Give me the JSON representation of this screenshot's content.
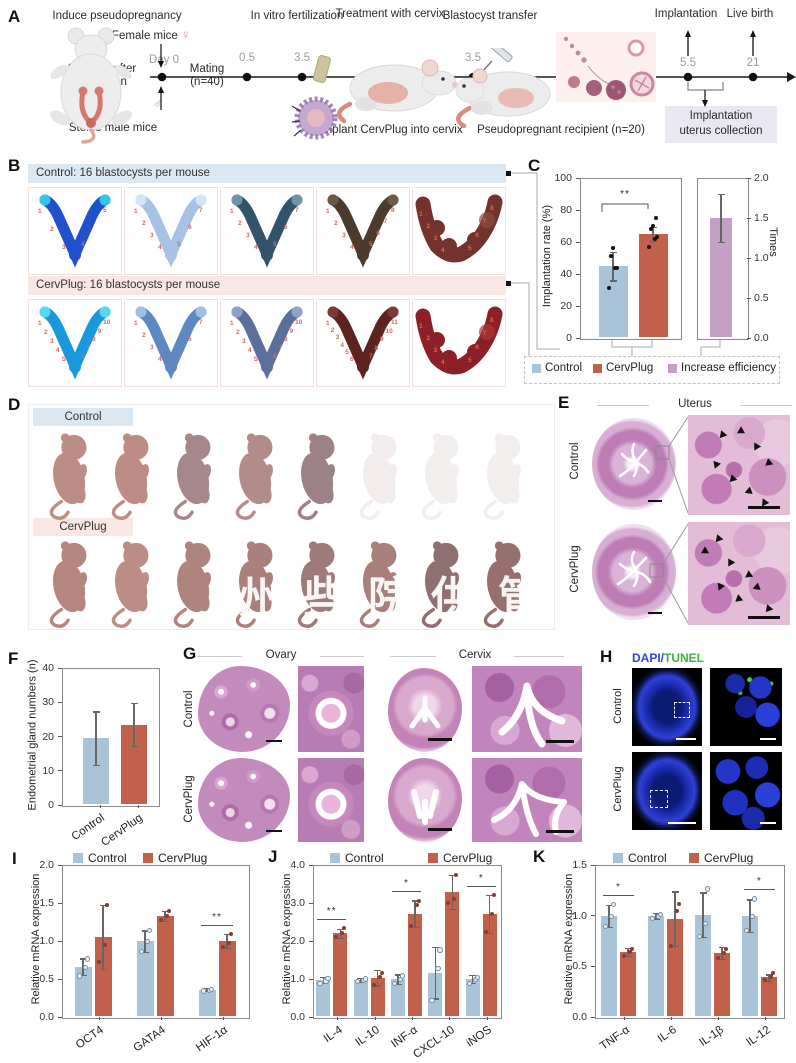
{
  "watermark": {
    "chars": [
      "州",
      "些",
      "院",
      "供",
      "管"
    ]
  },
  "colors": {
    "control": "#a9c4d8",
    "cervplug": "#c2614b",
    "increase_efficiency": "#c59fc5",
    "control_header_bg": "#dbe7f1",
    "cervplug_header_bg": "#f9e7e4",
    "dapi_blue": "#3442d8",
    "tunel_green": "#3cb53c",
    "collection_box_bg": "#e9e7f2",
    "specimen_number": "#d9655a"
  },
  "panelA": {
    "label": "A",
    "stage_induce": "Induce pseudopregnancy",
    "stage_ivf": "In vitro fertilization",
    "stage_treatment": "Treatment with cervix",
    "stage_transfer": "Blastocyst transfer",
    "stage_implantation": "Implantation",
    "stage_livebirth": "Live birth",
    "female_mice": "Female mice",
    "female_symbol": "♀",
    "male_symbol": "♂",
    "castration_line1": "2 weeks after",
    "castration_line2": "castration",
    "sterile_male": "Sterile male mice",
    "day0": "Day 0",
    "mating_line1": "Mating",
    "mating_line2": "(n=40)",
    "t_05": "0.5",
    "t_35_ivf": "3.5",
    "t_35_transfer": "3.5",
    "t_55": "5.5",
    "t_21": "21",
    "implant_caption": "Implant CervPlug into cervix",
    "recipient_caption": "Pseudopregnant recipient (n=20)",
    "collection_line1": "Implantation",
    "collection_line2": "uterus collection"
  },
  "panelB": {
    "label": "B",
    "rows": [
      {
        "group": "Control",
        "header": "Control: 16 blastocysts per mouse",
        "implant_counts": [
          5,
          7,
          7,
          8,
          8
        ],
        "specimen_colors": [
          "#2050cc",
          "#a6c2e4",
          "#33526b",
          "#4c3b2d",
          "#74322c"
        ],
        "tip_colors": [
          "#35c4e8",
          "#d4e6f5",
          "#6e94a8",
          "#6b5a48",
          "#8c4a42"
        ]
      },
      {
        "group": "CervPlug",
        "header": "CervPlug: 16 blastocysts per mouse",
        "implant_counts": [
          10,
          7,
          10,
          11,
          8
        ],
        "specimen_colors": [
          "#1899dd",
          "#5e88c2",
          "#5c6f9c",
          "#5d231f",
          "#8d2026"
        ],
        "tip_colors": [
          "#57d8f2",
          "#9fc0e0",
          "#8fa3c8",
          "#7a3b34",
          "#a83838"
        ]
      }
    ]
  },
  "panelD": {
    "label": "D",
    "groups": [
      {
        "name": "Control",
        "pup_colors": [
          "#bd8d85",
          "#bd8d85",
          "#a5878c",
          "#b18c8a",
          "#9c8186",
          "#f2edec",
          "#f3eeee",
          "#f3eeee"
        ]
      },
      {
        "name": "CervPlug",
        "pup_colors": [
          "#b5857e",
          "#bd8d85",
          "#b0847e",
          "#aa7f7c",
          "#9f7a7a",
          "#a87f7b",
          "#8f6f70",
          "#996f6d"
        ]
      }
    ]
  },
  "panelE": {
    "label": "E",
    "title": "Uterus",
    "row_labels": [
      "Control",
      "CervPlug"
    ]
  },
  "panelG": {
    "label": "G",
    "columns": [
      "Ovary",
      "Cervix"
    ],
    "row_labels": [
      "Control",
      "CervPlug"
    ]
  },
  "panelH": {
    "label": "H",
    "stain_blue": "DAPI",
    "separator": "/",
    "stain_green": "TUNEL",
    "row_labels": [
      "Control",
      "CervPlug"
    ]
  },
  "chart_data": [
    {
      "id": "C",
      "panel_label": "C",
      "type": "bar",
      "ylabel": "Implantation rate (%)",
      "ylim": [
        0,
        100
      ],
      "yticks": [
        "0",
        "20",
        "40",
        "60",
        "80",
        "100"
      ],
      "categories": [
        "Control",
        "CervPlug"
      ],
      "values": [
        45,
        65
      ],
      "errors": [
        9,
        4.5
      ],
      "points": [
        [
          31,
          44,
          44,
          51,
          56
        ],
        [
          57,
          62,
          63,
          68,
          70,
          75
        ]
      ],
      "significance": "**",
      "bar_colors": [
        "#a9c4d8",
        "#c2614b"
      ],
      "secondary": {
        "category": "Increase efficiency",
        "value": 1.5,
        "error": 0.3,
        "ylabel": "Times",
        "ylim": [
          0,
          2
        ],
        "yticks": [
          "0.0",
          "0.5",
          "1.0",
          "1.5",
          "2.0"
        ],
        "bar_color": "#c59fc5"
      },
      "legend": [
        "Control",
        "CervPlug",
        "Increase efficiency"
      ]
    },
    {
      "id": "F",
      "panel_label": "F",
      "type": "bar",
      "ylabel": "Endometrial gland numbers (n)",
      "ylim": [
        0,
        40
      ],
      "yticks": [
        "0",
        "10",
        "20",
        "30",
        "40"
      ],
      "categories": [
        "Control",
        "CervPlug"
      ],
      "values": [
        19.5,
        23.5
      ],
      "errors": [
        7.8,
        6.2
      ],
      "bar_colors": [
        "#a9c4d8",
        "#c2614b"
      ]
    },
    {
      "id": "I",
      "panel_label": "I",
      "type": "grouped_bar",
      "ylabel": "Relative mRNA expression",
      "ylim": [
        0,
        2
      ],
      "yticks": [
        "0.0",
        "0.5",
        "1.0",
        "1.5",
        "2.0"
      ],
      "categories": [
        "OCT4",
        "GATA4",
        "HIF-1α"
      ],
      "series": [
        {
          "name": "Control",
          "color": "#a9c4d8",
          "values": [
            0.66,
            1.0,
            0.36
          ],
          "errors": [
            0.11,
            0.14,
            0.02
          ],
          "points": [
            [
              0.55,
              0.66,
              0.77
            ],
            [
              0.87,
              1.0,
              1.15
            ],
            [
              0.35,
              0.36,
              0.37
            ]
          ]
        },
        {
          "name": "CervPlug",
          "color": "#c2614b",
          "values": [
            1.05,
            1.33,
            1.0
          ],
          "errors": [
            0.42,
            0.07,
            0.09
          ],
          "points": [
            [
              0.72,
              0.95,
              1.48
            ],
            [
              1.28,
              1.33,
              1.4
            ],
            [
              0.92,
              0.98,
              1.09
            ]
          ]
        }
      ],
      "significance": [
        {
          "category": "HIF-1α",
          "label": "**"
        }
      ]
    },
    {
      "id": "J",
      "panel_label": "J",
      "type": "grouped_bar",
      "ylabel": "Relative mRNA expression",
      "ylim": [
        0,
        4
      ],
      "yticks": [
        "0.0",
        "1.0",
        "2.0",
        "3.0",
        "4.0"
      ],
      "categories": [
        "IL-4",
        "IL-10",
        "INF-α",
        "CXCL-10",
        "iNOS"
      ],
      "series": [
        {
          "name": "Control",
          "color": "#a9c4d8",
          "values": [
            0.97,
            0.98,
            1.0,
            1.17,
            1.0
          ],
          "errors": [
            0.08,
            0.05,
            0.12,
            0.68,
            0.1
          ],
          "points": [
            [
              0.9,
              0.97,
              1.03
            ],
            [
              0.95,
              0.98,
              1.02
            ],
            [
              0.9,
              1.0,
              1.1
            ],
            [
              0.45,
              1.3,
              1.78
            ],
            [
              0.9,
              1.0,
              1.05
            ]
          ]
        },
        {
          "name": "CervPlug",
          "color": "#c2614b",
          "values": [
            2.2,
            1.03,
            2.72,
            3.3,
            2.72
          ],
          "errors": [
            0.12,
            0.2,
            0.35,
            0.45,
            0.5
          ],
          "points": [
            [
              2.1,
              2.2,
              2.33
            ],
            [
              0.85,
              1.05,
              1.15
            ],
            [
              2.4,
              2.95,
              3.05
            ],
            [
              3.0,
              3.1,
              3.75
            ],
            [
              2.25,
              2.7,
              3.2
            ]
          ]
        }
      ],
      "significance": [
        {
          "category": "IL-4",
          "label": "**"
        },
        {
          "category": "INF-α",
          "label": "*"
        },
        {
          "category": "iNOS",
          "label": "*"
        }
      ]
    },
    {
      "id": "K",
      "panel_label": "K",
      "type": "grouped_bar",
      "ylabel": "Relative mRNA expression",
      "ylim": [
        0,
        1.5
      ],
      "yticks": [
        "0.0",
        "0.5",
        "1.0",
        "1.5"
      ],
      "categories": [
        "TNF-α",
        "IL-6",
        "IL-1β",
        "IL-12"
      ],
      "series": [
        {
          "name": "Control",
          "color": "#a9c4d8",
          "values": [
            1.0,
            1.0,
            1.01,
            1.0
          ],
          "errors": [
            0.11,
            0.03,
            0.22,
            0.16
          ],
          "points": [
            [
              0.9,
              1.0,
              1.12
            ],
            [
              0.98,
              1.0,
              1.02
            ],
            [
              0.8,
              0.93,
              1.27
            ],
            [
              0.86,
              1.0,
              1.17
            ]
          ]
        },
        {
          "name": "CervPlug",
          "color": "#c2614b",
          "values": [
            0.64,
            0.97,
            0.63,
            0.39
          ],
          "errors": [
            0.04,
            0.27,
            0.06,
            0.03
          ],
          "points": [
            [
              0.6,
              0.64,
              0.67
            ],
            [
              0.7,
              1.05,
              1.12
            ],
            [
              0.58,
              0.63,
              0.67
            ],
            [
              0.37,
              0.39,
              0.43
            ]
          ]
        }
      ],
      "significance": [
        {
          "category": "TNF-α",
          "label": "*"
        },
        {
          "category": "IL-12",
          "label": "*"
        }
      ]
    }
  ]
}
